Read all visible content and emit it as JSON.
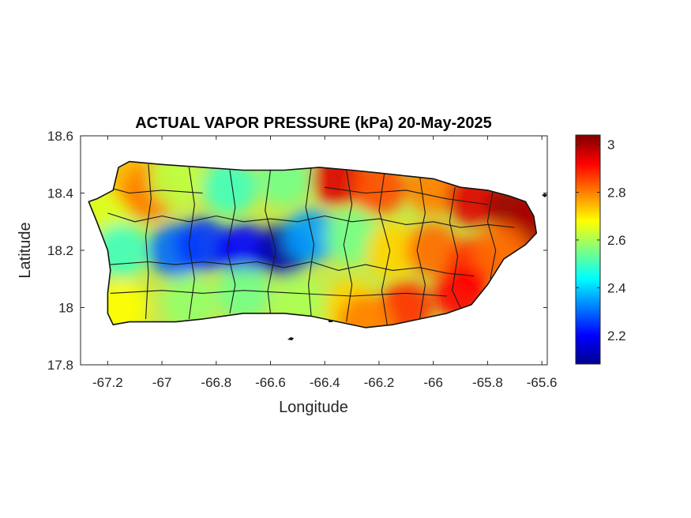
{
  "chart_data": {
    "type": "heatmap",
    "title": "ACTUAL VAPOR PRESSURE (kPa) 20-May-2025",
    "xlabel": "Longitude",
    "ylabel": "Latitude",
    "xlim": [
      -67.3,
      -65.58
    ],
    "ylim": [
      17.8,
      18.6
    ],
    "xticks": [
      -67.2,
      -67,
      -66.8,
      -66.6,
      -66.4,
      -66.2,
      -66,
      -65.8,
      -65.6
    ],
    "xtick_labels": [
      "-67.2",
      "-67",
      "-66.8",
      "-66.6",
      "-66.4",
      "-66.2",
      "-66",
      "-65.8",
      "-65.6"
    ],
    "yticks": [
      18.6,
      18.4,
      18.2,
      18,
      17.8
    ],
    "ytick_labels": [
      "18.6",
      "18.4",
      "18.2",
      "18",
      "17.8"
    ],
    "colorbar": {
      "colormap": "jet",
      "range": [
        2.08,
        3.04
      ],
      "ticks": [
        2.2,
        2.4,
        2.6,
        2.8,
        3
      ],
      "tick_labels": [
        "2.2",
        "2.4",
        "2.6",
        "2.8",
        "3"
      ]
    },
    "grid": false,
    "value_field_samples": [
      {
        "lon": -67.2,
        "lat": 18.35,
        "value": 2.65
      },
      {
        "lon": -67.1,
        "lat": 18.45,
        "value": 2.75
      },
      {
        "lon": -67.05,
        "lat": 18.4,
        "value": 2.8
      },
      {
        "lon": -66.95,
        "lat": 18.45,
        "value": 2.62
      },
      {
        "lon": -66.75,
        "lat": 18.42,
        "value": 2.5
      },
      {
        "lon": -66.55,
        "lat": 18.45,
        "value": 2.55
      },
      {
        "lon": -66.35,
        "lat": 18.45,
        "value": 2.95
      },
      {
        "lon": -66.2,
        "lat": 18.42,
        "value": 2.85
      },
      {
        "lon": -66.0,
        "lat": 18.42,
        "value": 2.8
      },
      {
        "lon": -65.85,
        "lat": 18.38,
        "value": 2.95
      },
      {
        "lon": -65.7,
        "lat": 18.35,
        "value": 3.02
      },
      {
        "lon": -65.65,
        "lat": 18.28,
        "value": 3.0
      },
      {
        "lon": -67.15,
        "lat": 18.2,
        "value": 2.5
      },
      {
        "lon": -66.95,
        "lat": 18.2,
        "value": 2.3
      },
      {
        "lon": -66.85,
        "lat": 18.22,
        "value": 2.25
      },
      {
        "lon": -66.7,
        "lat": 18.2,
        "value": 2.2
      },
      {
        "lon": -66.55,
        "lat": 18.2,
        "value": 2.12
      },
      {
        "lon": -66.45,
        "lat": 18.25,
        "value": 2.35
      },
      {
        "lon": -66.3,
        "lat": 18.25,
        "value": 2.55
      },
      {
        "lon": -66.15,
        "lat": 18.2,
        "value": 2.72
      },
      {
        "lon": -66.0,
        "lat": 18.2,
        "value": 2.82
      },
      {
        "lon": -65.85,
        "lat": 18.15,
        "value": 2.88
      },
      {
        "lon": -65.75,
        "lat": 18.2,
        "value": 2.82
      },
      {
        "lon": -67.15,
        "lat": 18.0,
        "value": 2.68
      },
      {
        "lon": -66.9,
        "lat": 18.02,
        "value": 2.58
      },
      {
        "lon": -66.7,
        "lat": 18.05,
        "value": 2.55
      },
      {
        "lon": -66.5,
        "lat": 18.02,
        "value": 2.6
      },
      {
        "lon": -66.3,
        "lat": 18.0,
        "value": 2.72
      },
      {
        "lon": -66.1,
        "lat": 18.0,
        "value": 2.88
      },
      {
        "lon": -65.9,
        "lat": 18.05,
        "value": 2.92
      },
      {
        "lon": -66.25,
        "lat": 17.95,
        "value": 2.8
      }
    ],
    "coastline": [
      [
        -67.27,
        18.37
      ],
      [
        -67.24,
        18.38
      ],
      [
        -67.18,
        18.41
      ],
      [
        -67.16,
        18.49
      ],
      [
        -67.12,
        18.51
      ],
      [
        -67.0,
        18.5
      ],
      [
        -66.85,
        18.49
      ],
      [
        -66.7,
        18.48
      ],
      [
        -66.55,
        18.48
      ],
      [
        -66.42,
        18.49
      ],
      [
        -66.3,
        18.48
      ],
      [
        -66.2,
        18.47
      ],
      [
        -66.1,
        18.46
      ],
      [
        -66.0,
        18.45
      ],
      [
        -65.9,
        18.42
      ],
      [
        -65.8,
        18.41
      ],
      [
        -65.72,
        18.39
      ],
      [
        -65.66,
        18.37
      ],
      [
        -65.63,
        18.32
      ],
      [
        -65.62,
        18.26
      ],
      [
        -65.66,
        18.22
      ],
      [
        -65.74,
        18.17
      ],
      [
        -65.8,
        18.08
      ],
      [
        -65.86,
        18.01
      ],
      [
        -65.95,
        17.98
      ],
      [
        -66.05,
        17.96
      ],
      [
        -66.15,
        17.94
      ],
      [
        -66.25,
        17.93
      ],
      [
        -66.35,
        17.95
      ],
      [
        -66.45,
        17.97
      ],
      [
        -66.55,
        17.98
      ],
      [
        -66.7,
        17.98
      ],
      [
        -66.85,
        17.96
      ],
      [
        -66.95,
        17.95
      ],
      [
        -67.05,
        17.95
      ],
      [
        -67.12,
        17.95
      ],
      [
        -67.18,
        17.94
      ],
      [
        -67.2,
        17.98
      ],
      [
        -67.2,
        18.05
      ],
      [
        -67.19,
        18.13
      ],
      [
        -67.2,
        18.2
      ],
      [
        -67.24,
        18.3
      ],
      [
        -67.27,
        18.37
      ]
    ]
  }
}
